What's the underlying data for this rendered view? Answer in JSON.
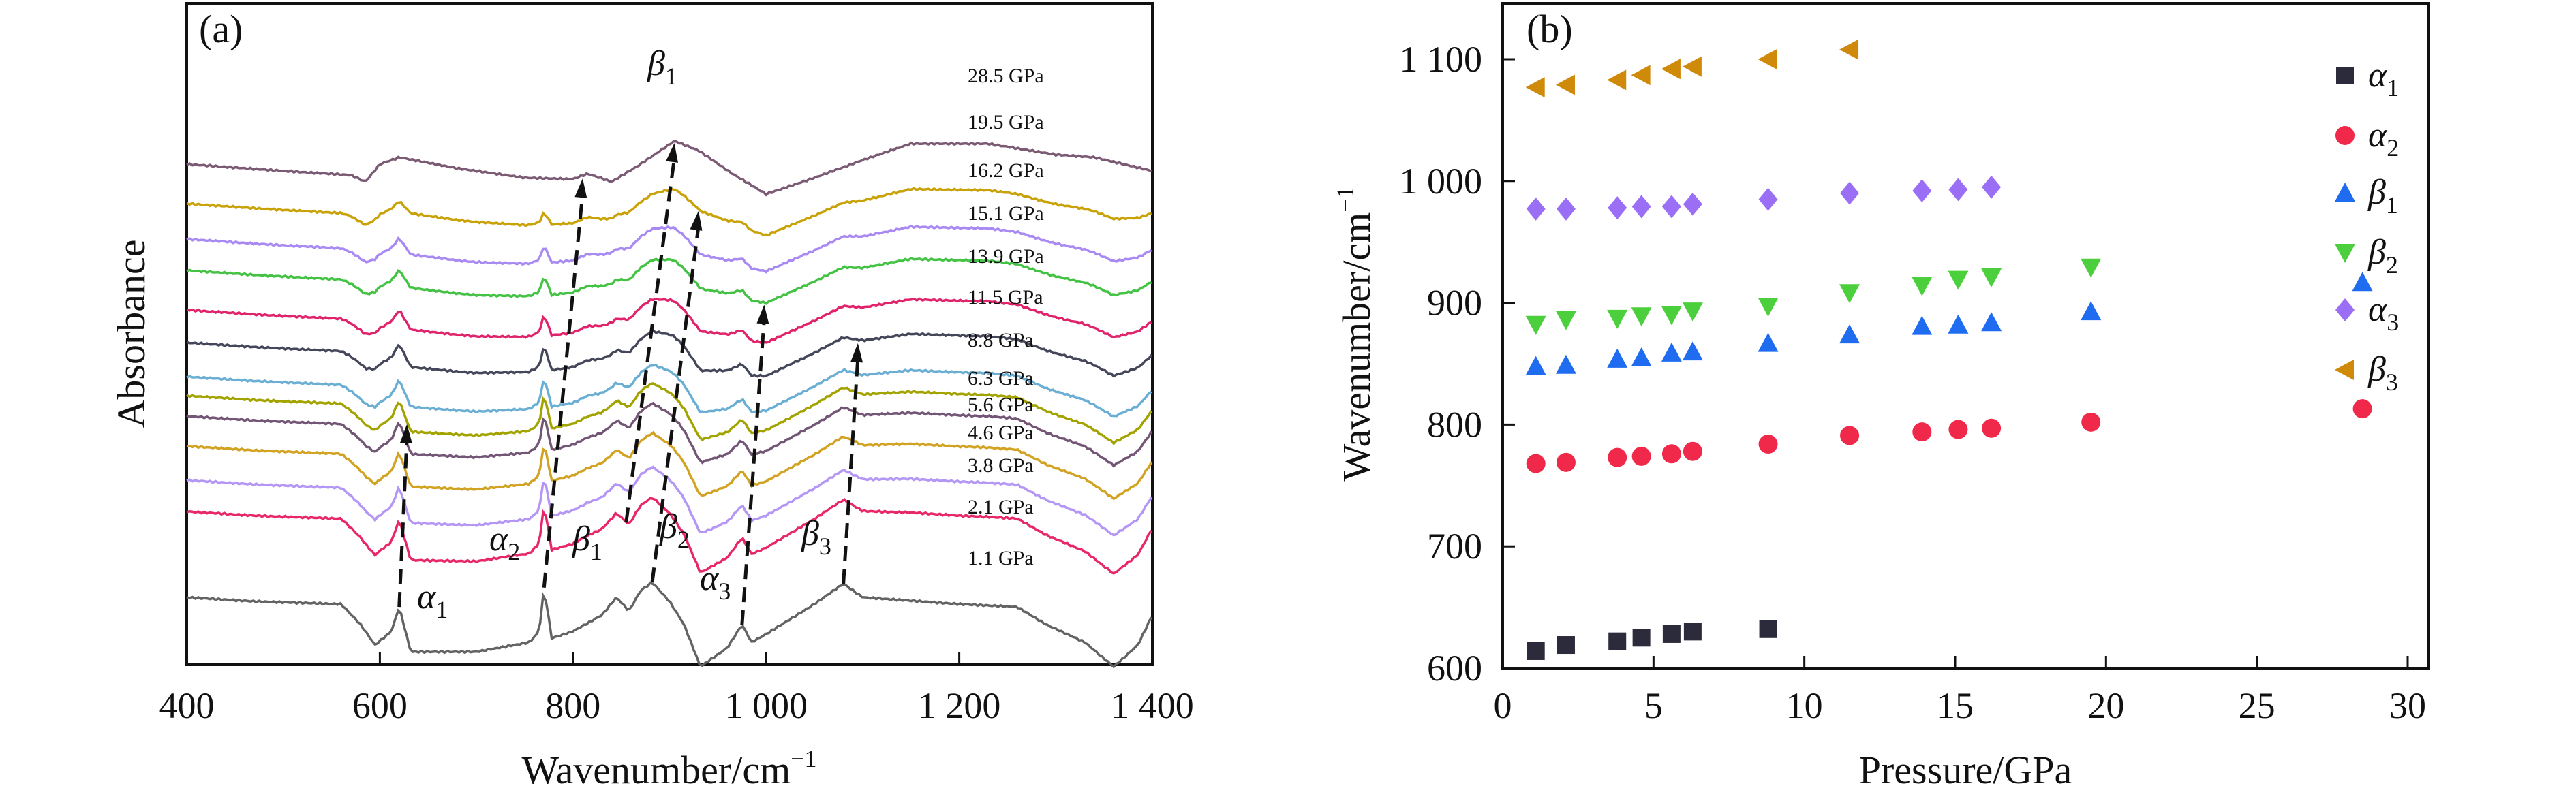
{
  "chart_data": [
    {
      "type": "line",
      "panel_label": "(a)",
      "xlabel": "Wavenumber/cm",
      "xlabel_sup": "−1",
      "ylabel": "Absorbance",
      "xlim": [
        400,
        1400
      ],
      "xticks": [
        "400",
        "600",
        "800",
        "1 000",
        "1 200",
        "1 400"
      ],
      "xtick_values": [
        400,
        600,
        800,
        1000,
        1200,
        1400
      ],
      "grid": false,
      "reference_profiles": {
        "low_pressure_1.1GPa": [
          [
            400,
            0.55
          ],
          [
            470,
            0.52
          ],
          [
            560,
            0.5
          ],
          [
            580,
            0.35
          ],
          [
            595,
            0.2
          ],
          [
            612,
            0.3
          ],
          [
            620,
            0.48
          ],
          [
            632,
            0.15
          ],
          [
            700,
            0.15
          ],
          [
            755,
            0.22
          ],
          [
            765,
            0.3
          ],
          [
            770,
            0.62
          ],
          [
            778,
            0.25
          ],
          [
            800,
            0.3
          ],
          [
            830,
            0.42
          ],
          [
            845,
            0.55
          ],
          [
            858,
            0.45
          ],
          [
            870,
            0.6
          ],
          [
            882,
            0.66
          ],
          [
            900,
            0.52
          ],
          [
            915,
            0.35
          ],
          [
            932,
            0.04
          ],
          [
            960,
            0.18
          ],
          [
            975,
            0.35
          ],
          [
            985,
            0.22
          ],
          [
            1000,
            0.28
          ],
          [
            1050,
            0.5
          ],
          [
            1080,
            0.65
          ],
          [
            1100,
            0.55
          ],
          [
            1200,
            0.5
          ],
          [
            1260,
            0.48
          ],
          [
            1290,
            0.35
          ],
          [
            1330,
            0.22
          ],
          [
            1360,
            0.04
          ],
          [
            1385,
            0.2
          ],
          [
            1400,
            0.42
          ]
        ],
        "high_pressure_28.5GPa": [
          [
            400,
            0.55
          ],
          [
            500,
            0.5
          ],
          [
            570,
            0.47
          ],
          [
            585,
            0.42
          ],
          [
            600,
            0.55
          ],
          [
            620,
            0.6
          ],
          [
            680,
            0.52
          ],
          [
            750,
            0.45
          ],
          [
            800,
            0.44
          ],
          [
            815,
            0.48
          ],
          [
            840,
            0.42
          ],
          [
            870,
            0.55
          ],
          [
            905,
            0.72
          ],
          [
            930,
            0.65
          ],
          [
            965,
            0.48
          ],
          [
            1000,
            0.33
          ],
          [
            1050,
            0.45
          ],
          [
            1100,
            0.58
          ],
          [
            1150,
            0.7
          ],
          [
            1230,
            0.7
          ],
          [
            1300,
            0.62
          ],
          [
            1340,
            0.6
          ],
          [
            1400,
            0.5
          ]
        ]
      },
      "series": [
        {
          "name": "28.5 GPa",
          "pressure": 28.5,
          "offset": 3.18,
          "color": "#7b5a74"
        },
        {
          "name": "19.5 GPa",
          "pressure": 19.5,
          "offset": 2.89,
          "color": "#c9a208"
        },
        {
          "name": "16.2 GPa",
          "pressure": 16.2,
          "offset": 2.63,
          "color": "#a88af2"
        },
        {
          "name": "15.1 GPa",
          "pressure": 15.1,
          "offset": 2.4,
          "color": "#44c244"
        },
        {
          "name": "13.9 GPa",
          "pressure": 13.9,
          "offset": 2.11,
          "color": "#e0246c"
        },
        {
          "name": "11.5 GPa",
          "pressure": 11.5,
          "offset": 1.87,
          "color": "#44465a"
        },
        {
          "name": "8.8 GPa",
          "pressure": 8.8,
          "offset": 1.62,
          "color": "#6aaed4"
        },
        {
          "name": "6.3 GPa",
          "pressure": 6.3,
          "offset": 1.48,
          "color": "#a3a300"
        },
        {
          "name": "5.6 GPa",
          "pressure": 5.6,
          "offset": 1.33,
          "color": "#735575"
        },
        {
          "name": "4.6 GPa",
          "pressure": 4.6,
          "offset": 1.11,
          "color": "#d2a322"
        },
        {
          "name": "3.8 GPa",
          "pressure": 3.8,
          "offset": 0.86,
          "color": "#b496f4"
        },
        {
          "name": "2.1 GPa",
          "pressure": 2.1,
          "offset": 0.63,
          "color": "#e8266a"
        },
        {
          "name": "1.1 GPa",
          "pressure": 1.1,
          "offset": 0.0,
          "color": "#636363"
        }
      ],
      "peak_annotations": [
        {
          "symbol": "α",
          "sub": "1"
        },
        {
          "symbol": "α",
          "sub": "2"
        },
        {
          "symbol": "β",
          "sub": "1"
        },
        {
          "symbol": "β",
          "sub": "2"
        },
        {
          "symbol": "α",
          "sub": "3"
        },
        {
          "symbol": "β",
          "sub": "3"
        },
        {
          "symbol": "β",
          "sub": "1"
        }
      ],
      "peak_shift_arrows": [
        {
          "peak": "α1",
          "from": [
            620,
            "1.1 GPa"
          ],
          "to": [
            628,
            "6.3 GPa"
          ]
        },
        {
          "peak": "α2",
          "from": [
            770,
            "1.1 GPa"
          ],
          "to": [
            810,
            "28.5 GPa"
          ]
        },
        {
          "peak": "β1",
          "from": [
            855,
            "2.1 GPa"
          ],
          "to": [
            905,
            "28.5 GPa"
          ]
        },
        {
          "peak": "β2",
          "from": [
            882,
            "1.1 GPa"
          ],
          "to": [
            930,
            "19.5 GPa"
          ]
        },
        {
          "peak": "α3",
          "from": [
            975,
            "1.1 GPa"
          ],
          "to": [
            998,
            "15.1 GPa"
          ]
        },
        {
          "peak": "β3",
          "from": [
            1080,
            "1.1 GPa"
          ],
          "to": [
            1095,
            "11.5 GPa"
          ]
        }
      ]
    },
    {
      "type": "scatter",
      "panel_label": "(b)",
      "xlabel": "Pressure/GPa",
      "ylabel": "Wavenumber/cm",
      "ylabel_sup": "−1",
      "xlim": [
        0,
        32.5
      ],
      "ylim": [
        600,
        1150
      ],
      "xticks": [
        "0",
        "5",
        "10",
        "15",
        "20",
        "25",
        "30"
      ],
      "xtick_values": [
        0,
        5,
        10,
        15,
        20,
        25,
        30
      ],
      "yticks": [
        "600",
        "700",
        "800",
        "900",
        "1 000",
        "1 100"
      ],
      "ytick_values": [
        600,
        700,
        800,
        900,
        1000,
        1100
      ],
      "grid": false,
      "legend_position": "top-right",
      "series": [
        {
          "symbol": "α",
          "sub": "1",
          "marker": "square",
          "color": "#2b2b3b",
          "x": [
            1.1,
            2.1,
            3.8,
            4.6,
            5.6,
            6.3,
            8.8
          ],
          "y": [
            614,
            619,
            622,
            625,
            628,
            630,
            632
          ]
        },
        {
          "symbol": "α",
          "sub": "2",
          "marker": "circle",
          "color": "#f0284a",
          "x": [
            1.1,
            2.1,
            3.8,
            4.6,
            5.6,
            6.3,
            8.8,
            11.5,
            13.9,
            15.1,
            16.2,
            19.5,
            28.5
          ],
          "y": [
            768,
            769,
            773,
            774,
            776,
            778,
            784,
            791,
            794,
            796,
            797,
            802,
            813
          ]
        },
        {
          "symbol": "β",
          "sub": "1",
          "marker": "triangle-up",
          "color": "#1f6cf0",
          "x": [
            1.1,
            2.1,
            3.8,
            4.6,
            5.6,
            6.3,
            8.8,
            11.5,
            13.9,
            15.1,
            16.2,
            19.5,
            28.5
          ],
          "y": [
            848,
            849,
            854,
            855,
            859,
            860,
            867,
            874,
            881,
            882,
            884,
            893,
            917
          ]
        },
        {
          "symbol": "β",
          "sub": "2",
          "marker": "triangle-down",
          "color": "#4ccf3c",
          "x": [
            1.1,
            2.1,
            3.8,
            4.6,
            5.6,
            6.3,
            8.8,
            11.5,
            13.9,
            15.1,
            16.2,
            19.5
          ],
          "y": [
            882,
            886,
            887,
            889,
            890,
            893,
            897,
            908,
            914,
            919,
            921,
            929
          ]
        },
        {
          "symbol": "α",
          "sub": "3",
          "marker": "diamond",
          "color": "#9b6ff5",
          "x": [
            1.1,
            2.1,
            3.8,
            4.6,
            5.6,
            6.3,
            8.8,
            11.5,
            13.9,
            15.1,
            16.2
          ],
          "y": [
            977,
            977,
            978,
            979,
            979,
            981,
            985,
            990,
            992,
            993,
            995
          ]
        },
        {
          "symbol": "β",
          "sub": "3",
          "marker": "triangle-left",
          "color": "#d08a0a",
          "x": [
            1.1,
            2.1,
            3.8,
            4.6,
            5.6,
            6.3,
            8.8,
            11.5
          ],
          "y": [
            1077,
            1079,
            1083,
            1087,
            1092,
            1094,
            1100,
            1108
          ]
        }
      ]
    }
  ]
}
